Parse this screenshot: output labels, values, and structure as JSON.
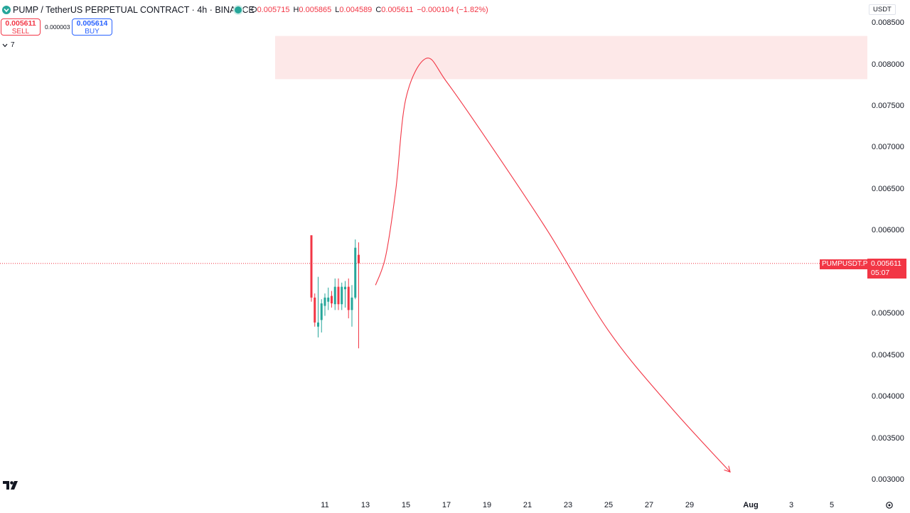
{
  "header": {
    "symbol_title": "PUMP / TetherUS PERPETUAL CONTRACT · 4h · BINANCE",
    "ohlc": [
      {
        "label": "O",
        "value": "0.005715"
      },
      {
        "label": "H",
        "value": "0.005865"
      },
      {
        "label": "L",
        "value": "0.004589"
      },
      {
        "label": "C",
        "value": "0.005611"
      }
    ],
    "change": "−0.000104 (−1.82%)"
  },
  "trade": {
    "sell_price": "0.005611",
    "sell_label": "SELL",
    "spread": "0.000003",
    "buy_price": "0.005614",
    "buy_label": "BUY"
  },
  "indicators_toggle": {
    "count": "7"
  },
  "price_axis": {
    "currency": "USDT",
    "ticks": [
      "0.008500",
      "0.008000",
      "0.007500",
      "0.007000",
      "0.006500",
      "0.006000",
      "0.005000",
      "0.004500",
      "0.004000",
      "0.003500",
      "0.003000"
    ]
  },
  "time_axis": {
    "ticks": [
      {
        "label": "11",
        "bold": false
      },
      {
        "label": "13",
        "bold": false
      },
      {
        "label": "15",
        "bold": false
      },
      {
        "label": "17",
        "bold": false
      },
      {
        "label": "19",
        "bold": false
      },
      {
        "label": "21",
        "bold": false
      },
      {
        "label": "23",
        "bold": false
      },
      {
        "label": "25",
        "bold": false
      },
      {
        "label": "27",
        "bold": false
      },
      {
        "label": "29",
        "bold": false
      },
      {
        "label": "Aug",
        "bold": true
      },
      {
        "label": "3",
        "bold": false
      },
      {
        "label": "5",
        "bold": false
      }
    ]
  },
  "last_price": {
    "symbol": "PUMPUSDT.P",
    "price": "0.005611",
    "countdown": "05:07",
    "value": 0.005611
  },
  "colors": {
    "up": "#26a69a",
    "down": "#f23645",
    "zone_fill": "#fde8e8",
    "projection": "#f23645"
  },
  "drawings": {
    "resistance_zone": {
      "price_top": 0.00835,
      "price_bottom": 0.00783
    },
    "projection_path": [
      {
        "date": "Jul 13 12:00",
        "price": 0.00535
      },
      {
        "date": "Jul 14 00:00",
        "price": 0.0057
      },
      {
        "date": "Jul 14 12:00",
        "price": 0.0065
      },
      {
        "date": "Jul 15 00:00",
        "price": 0.0076
      },
      {
        "date": "Jul 16 00:00",
        "price": 0.00808
      },
      {
        "date": "Jul 17 00:00",
        "price": 0.0078
      },
      {
        "date": "Jul 19 00:00",
        "price": 0.0071
      },
      {
        "date": "Jul 22 00:00",
        "price": 0.006
      },
      {
        "date": "Jul 25 00:00",
        "price": 0.0048
      },
      {
        "date": "Jul 28 00:00",
        "price": 0.0039
      },
      {
        "date": "Jul 31 00:00",
        "price": 0.0031
      }
    ]
  },
  "chart_data": {
    "type": "candlestick",
    "price_range": [
      0.003,
      0.0085
    ],
    "candles": [
      {
        "o": 0.00595,
        "h": 0.00595,
        "l": 0.00515,
        "c": 0.0052
      },
      {
        "o": 0.0052,
        "h": 0.00525,
        "l": 0.00485,
        "c": 0.0049
      },
      {
        "o": 0.00485,
        "h": 0.00545,
        "l": 0.00472,
        "c": 0.0049
      },
      {
        "o": 0.00493,
        "h": 0.00518,
        "l": 0.00478,
        "c": 0.00513
      },
      {
        "o": 0.0051,
        "h": 0.00525,
        "l": 0.00498,
        "c": 0.0052
      },
      {
        "o": 0.00515,
        "h": 0.00532,
        "l": 0.00505,
        "c": 0.0052
      },
      {
        "o": 0.00522,
        "h": 0.00528,
        "l": 0.00508,
        "c": 0.00513
      },
      {
        "o": 0.00512,
        "h": 0.00543,
        "l": 0.00505,
        "c": 0.00533
      },
      {
        "o": 0.00533,
        "h": 0.00543,
        "l": 0.00505,
        "c": 0.00512
      },
      {
        "o": 0.00512,
        "h": 0.00538,
        "l": 0.00505,
        "c": 0.00533
      },
      {
        "o": 0.0053,
        "h": 0.0054,
        "l": 0.00508,
        "c": 0.00533
      },
      {
        "o": 0.00533,
        "h": 0.00543,
        "l": 0.00495,
        "c": 0.00505
      },
      {
        "o": 0.00505,
        "h": 0.00535,
        "l": 0.00485,
        "c": 0.0052
      },
      {
        "o": 0.0052,
        "h": 0.0059,
        "l": 0.00518,
        "c": 0.0058
      },
      {
        "o": 0.005715,
        "h": 0.005865,
        "l": 0.004589,
        "c": 0.005611
      }
    ]
  }
}
